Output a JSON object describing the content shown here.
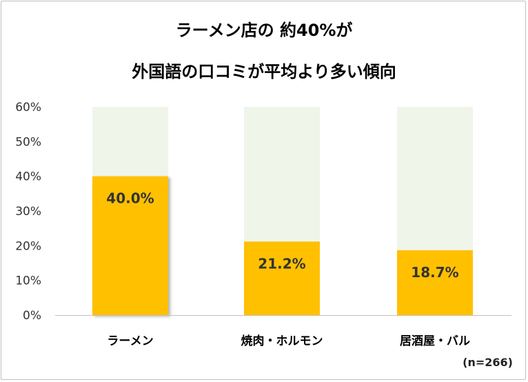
{
  "chart_data": {
    "type": "bar",
    "title": [
      "ラーメン店の 約40%が",
      "外国語の口コミが平均より多い傾向"
    ],
    "categories": [
      "ラーメン",
      "焼肉・ホルモン",
      "居酒屋・バル"
    ],
    "values": [
      40.0,
      21.2,
      18.7
    ],
    "data_labels": [
      "40.0%",
      "21.2%",
      "18.7%"
    ],
    "ylim": [
      0,
      60
    ],
    "yticks": [
      0,
      10,
      20,
      30,
      40,
      50,
      60
    ],
    "ytick_labels": [
      "0%",
      "10%",
      "20%",
      "30%",
      "40%",
      "50%",
      "60%"
    ],
    "xlabel": "",
    "ylabel": "",
    "grid": false,
    "legend": "none",
    "note": "(n=266)",
    "colors": {
      "bar": "#FFC000",
      "background_bar": "#EFF5E9",
      "axis": "#bfbfbf",
      "text": "#333333"
    }
  }
}
